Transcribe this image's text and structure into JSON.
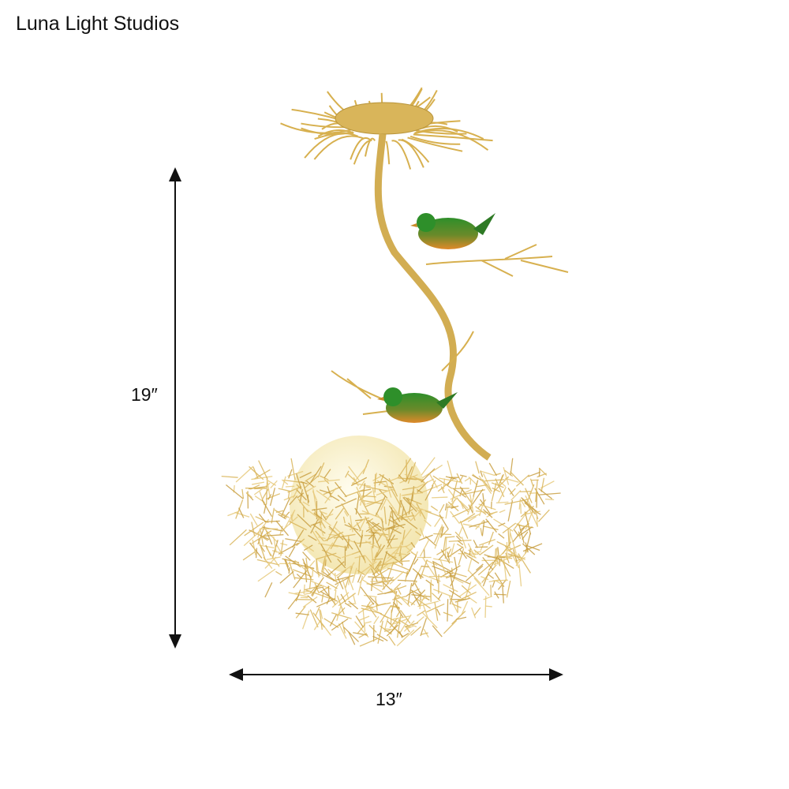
{
  "brand": "Luna Light Studios",
  "dimensions": {
    "height": "19″",
    "width": "13″"
  },
  "product": {
    "image": "gold bird nest semi-flush ceiling lamp with two green birds and white glass globe",
    "colors": {
      "gold": "#d9b55a",
      "bird_green": "#2f8a2a",
      "bird_orange": "#d9822b",
      "globe": "#fbf6dc"
    }
  }
}
